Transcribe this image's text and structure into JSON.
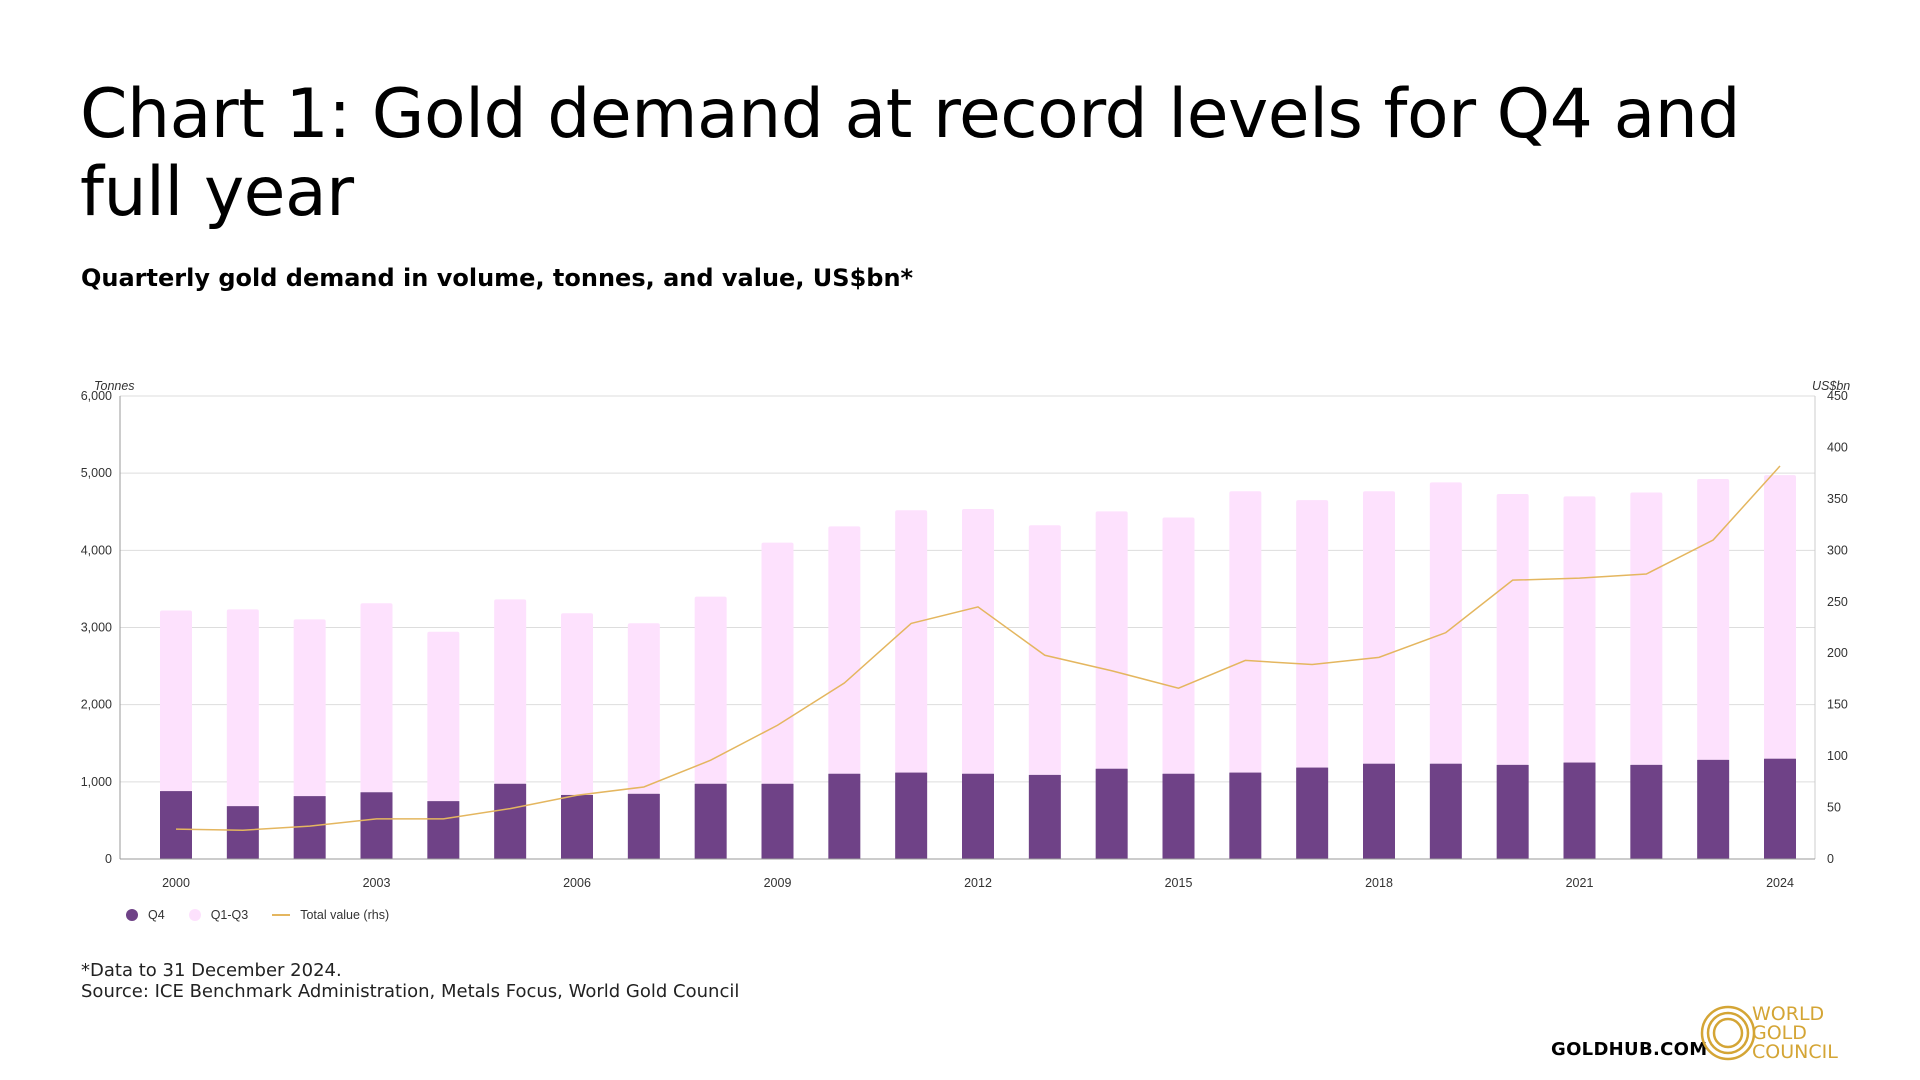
{
  "title": "Chart 1: Gold demand at record levels for Q4 and full year",
  "subtitle": "Quarterly gold demand in volume, tonnes, and value, US$bn*",
  "footnote": "*Data to 31 December 2024.",
  "source": "Source: ICE Benchmark Administration, Metals Focus, World Gold Council",
  "brand": {
    "site": "GOLDHUB.COM",
    "logo_lines": [
      "WORLD",
      "GOLD",
      "COUNCIL"
    ]
  },
  "colors": {
    "q4": "#6f4287",
    "q1q3": "#fde1fd",
    "line": "#e4b65f",
    "grid": "#bbbbbb",
    "logo": "#d4a535"
  },
  "chart_data": {
    "type": "bar",
    "stacked": true,
    "title": "",
    "ylabel": "Tonnes",
    "y2label": "US$bn",
    "ylim": [
      0,
      6000
    ],
    "y2lim": [
      0,
      450
    ],
    "yticks": [
      "0",
      "1,000",
      "2,000",
      "3,000",
      "4,000",
      "5,000",
      "6,000"
    ],
    "y2ticks": [
      "0",
      "50",
      "100",
      "150",
      "200",
      "250",
      "300",
      "350",
      "400",
      "450"
    ],
    "xtick_labels": [
      "2000",
      "2003",
      "2006",
      "2009",
      "2012",
      "2015",
      "2018",
      "2021",
      "2024"
    ],
    "grid": true,
    "legend_position": "bottom-left",
    "categories": [
      "2000",
      "2001",
      "2002",
      "2003",
      "2004",
      "2005",
      "2006",
      "2007",
      "2008",
      "2009",
      "2010",
      "2011",
      "2012",
      "2013",
      "2014",
      "2015",
      "2016",
      "2017",
      "2018",
      "2019",
      "2020",
      "2021",
      "2022",
      "2023",
      "2024"
    ],
    "series": [
      {
        "name": "Q4",
        "type": "bar",
        "values": [
          880,
          685,
          815,
          865,
          750,
          975,
          830,
          845,
          975,
          975,
          1105,
          1120,
          1105,
          1090,
          1170,
          1105,
          1120,
          1185,
          1235,
          1235,
          1220,
          1250,
          1220,
          1285,
          1300
        ]
      },
      {
        "name": "Q1-Q3",
        "type": "bar",
        "values": [
          2340,
          2550,
          2290,
          2450,
          2195,
          2390,
          2355,
          2210,
          2425,
          3125,
          3205,
          3400,
          3430,
          3235,
          3335,
          3320,
          3645,
          3465,
          3530,
          3645,
          3510,
          3450,
          3530,
          3640,
          3675
        ]
      },
      {
        "name": "Total value (rhs)",
        "type": "line",
        "axis": "right",
        "values": [
          29,
          28,
          32,
          39,
          39,
          49,
          62,
          70,
          96,
          130,
          171,
          229,
          245,
          198,
          183,
          166,
          193,
          189,
          196,
          220,
          271,
          273,
          277,
          310,
          382
        ]
      }
    ]
  }
}
